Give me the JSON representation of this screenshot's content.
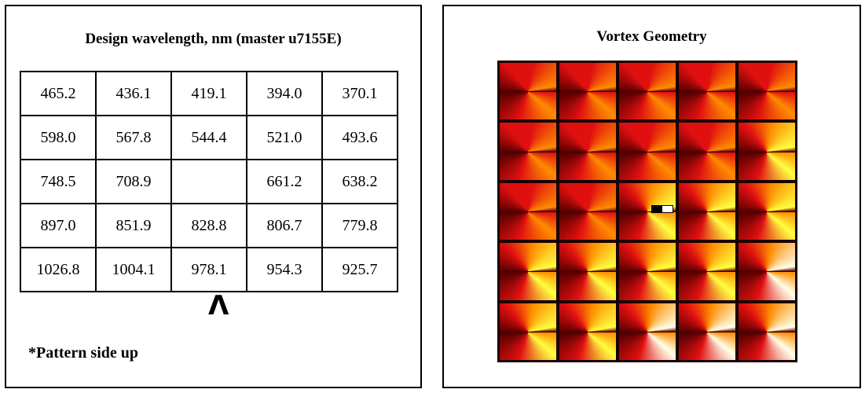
{
  "left_panel": {
    "title": "Design wavelength, nm (master u7155E)",
    "rows": [
      [
        "465.2",
        "436.1",
        "419.1",
        "394.0",
        "370.1"
      ],
      [
        "598.0",
        "567.8",
        "544.4",
        "521.0",
        "493.6"
      ],
      [
        "748.5",
        "708.9",
        "",
        "661.2",
        "638.2"
      ],
      [
        "897.0",
        "851.9",
        "828.8",
        "806.7",
        "779.8"
      ],
      [
        "1026.8",
        "1004.1",
        "978.1",
        "954.3",
        "925.7"
      ]
    ],
    "orientation_mark": "Λ",
    "footnote": "*Pattern side up"
  },
  "right_panel": {
    "title": "Vortex Geometry",
    "grid_rows": 5,
    "grid_cols": 5,
    "marker_cell": [
      2,
      2
    ],
    "colors": {
      "dark": "#5a0000",
      "red": "#e01010",
      "orange": "#ff8c00",
      "yellow": "#ffff40",
      "white": "#ffffe8",
      "frame": "#1a0000"
    }
  }
}
